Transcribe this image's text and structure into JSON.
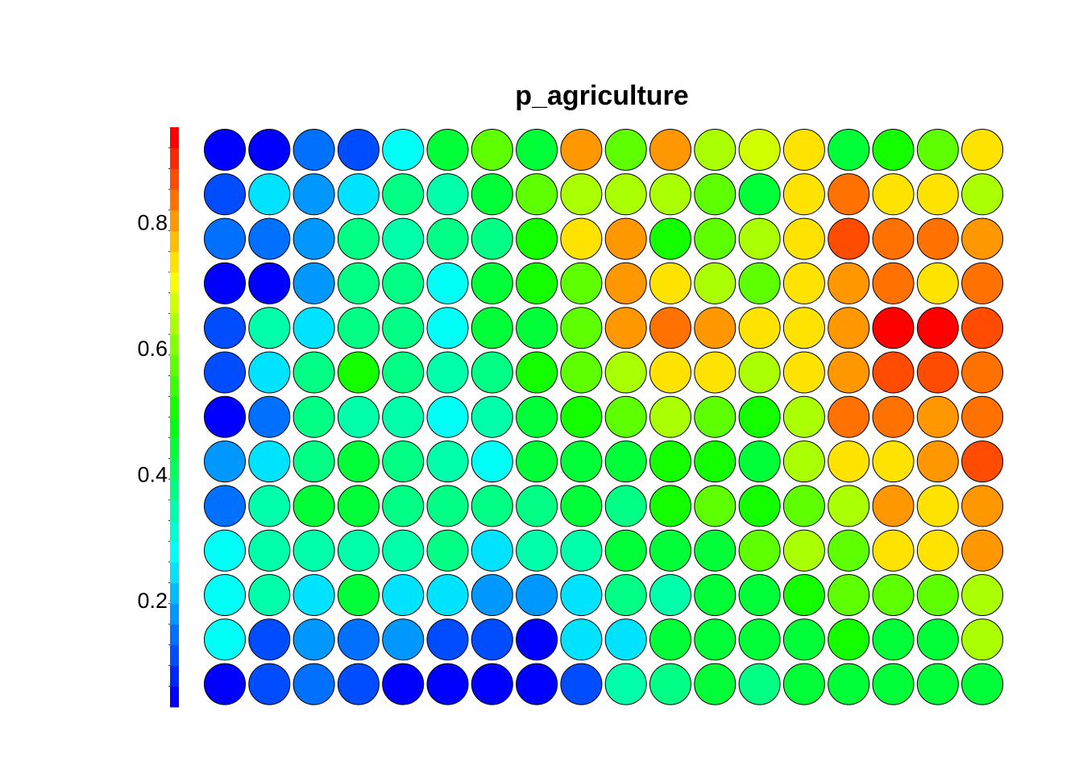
{
  "chart_data": {
    "type": "heatmap",
    "title": "p_agriculture",
    "colorbar": {
      "range": [
        0.03,
        0.95
      ],
      "ticks": [
        0.2,
        0.4,
        0.6,
        0.8
      ],
      "tick_labels": [
        "0.2",
        "0.4",
        "0.6",
        "0.8"
      ],
      "n_levels": 28,
      "palette": "rainbow (blue-cyan-green-yellow-red)"
    },
    "grid": {
      "rows": 13,
      "cols": 18
    },
    "values": [
      [
        0.03,
        0.06,
        0.15,
        0.1,
        0.28,
        0.45,
        0.57,
        0.43,
        0.81,
        0.57,
        0.81,
        0.65,
        0.67,
        0.73,
        0.43,
        0.5,
        0.57,
        0.73
      ],
      [
        0.1,
        0.23,
        0.19,
        0.23,
        0.37,
        0.33,
        0.43,
        0.57,
        0.65,
        0.65,
        0.65,
        0.57,
        0.43,
        0.73,
        0.84,
        0.73,
        0.73,
        0.65
      ],
      [
        0.15,
        0.15,
        0.19,
        0.37,
        0.33,
        0.37,
        0.37,
        0.52,
        0.73,
        0.81,
        0.52,
        0.57,
        0.65,
        0.73,
        0.88,
        0.84,
        0.84,
        0.81
      ],
      [
        0.06,
        0.06,
        0.19,
        0.37,
        0.37,
        0.28,
        0.43,
        0.52,
        0.57,
        0.81,
        0.73,
        0.65,
        0.57,
        0.73,
        0.81,
        0.84,
        0.73,
        0.84
      ],
      [
        0.1,
        0.33,
        0.23,
        0.37,
        0.37,
        0.28,
        0.43,
        0.45,
        0.57,
        0.81,
        0.84,
        0.81,
        0.73,
        0.73,
        0.81,
        0.92,
        0.95,
        0.88
      ],
      [
        0.1,
        0.23,
        0.37,
        0.52,
        0.37,
        0.33,
        0.37,
        0.52,
        0.57,
        0.65,
        0.73,
        0.73,
        0.65,
        0.73,
        0.81,
        0.88,
        0.88,
        0.84
      ],
      [
        0.06,
        0.15,
        0.37,
        0.33,
        0.33,
        0.28,
        0.33,
        0.45,
        0.52,
        0.57,
        0.65,
        0.57,
        0.52,
        0.65,
        0.84,
        0.84,
        0.81,
        0.84
      ],
      [
        0.19,
        0.23,
        0.37,
        0.43,
        0.37,
        0.33,
        0.28,
        0.43,
        0.45,
        0.43,
        0.52,
        0.52,
        0.43,
        0.65,
        0.73,
        0.73,
        0.81,
        0.88
      ],
      [
        0.15,
        0.33,
        0.43,
        0.43,
        0.37,
        0.37,
        0.37,
        0.37,
        0.43,
        0.37,
        0.52,
        0.57,
        0.52,
        0.57,
        0.65,
        0.81,
        0.73,
        0.81
      ],
      [
        0.28,
        0.33,
        0.33,
        0.33,
        0.33,
        0.37,
        0.23,
        0.33,
        0.33,
        0.43,
        0.45,
        0.45,
        0.57,
        0.65,
        0.57,
        0.73,
        0.73,
        0.81
      ],
      [
        0.28,
        0.33,
        0.23,
        0.43,
        0.23,
        0.23,
        0.19,
        0.19,
        0.23,
        0.37,
        0.33,
        0.45,
        0.43,
        0.52,
        0.57,
        0.57,
        0.57,
        0.65
      ],
      [
        0.28,
        0.1,
        0.19,
        0.15,
        0.19,
        0.1,
        0.1,
        0.06,
        0.23,
        0.23,
        0.43,
        0.45,
        0.43,
        0.45,
        0.52,
        0.45,
        0.45,
        0.65
      ],
      [
        0.06,
        0.1,
        0.15,
        0.1,
        0.06,
        0.06,
        0.03,
        0.06,
        0.1,
        0.33,
        0.37,
        0.43,
        0.37,
        0.45,
        0.45,
        0.45,
        0.45,
        0.45
      ]
    ]
  }
}
